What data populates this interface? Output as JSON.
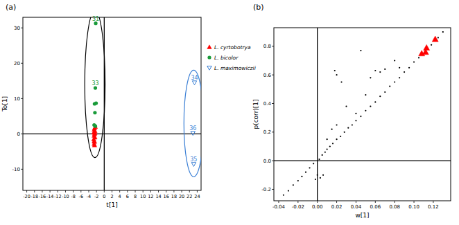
{
  "chart_data": [
    {
      "type": "scatter",
      "title": "(a)",
      "x_label": "t[1]",
      "y_label": "To[1]",
      "xlim": [
        -21,
        25
      ],
      "ylim": [
        -16,
        33
      ],
      "xticks": [
        -20,
        -18,
        -16,
        -14,
        -12,
        -10,
        -8,
        -6,
        -4,
        -2,
        0,
        2,
        4,
        6,
        8,
        10,
        12,
        14,
        16,
        18,
        20,
        22,
        24
      ],
      "yticks": [
        -10,
        0,
        10,
        20,
        30
      ],
      "legend": "right",
      "series": [
        {
          "name": "L. cyrtobotrya",
          "color": "#ff0000",
          "marker": "triangle",
          "x": [
            -2.6,
            -2.5,
            -2.7,
            -2.4,
            -2.6,
            -2.5,
            -2.7,
            -2.4,
            -2.6,
            -2.5,
            -2.3,
            -2.6,
            -2.5,
            -2.4
          ],
          "values": [
            -2.8,
            -2.2,
            -1.5,
            -1.0,
            -0.5,
            0.0,
            0.4,
            0.8,
            1.2,
            1.6,
            2.0,
            -2.0,
            -3.2,
            0.3
          ],
          "labels": [
            null,
            null,
            null,
            null,
            null,
            null,
            null,
            null,
            null,
            null,
            null,
            null,
            null,
            null
          ]
        },
        {
          "name": "L. bicolor",
          "color": "#1a9b3a",
          "marker": "circle",
          "x": [
            -2.2,
            -2.3,
            -2.5,
            -2.1,
            -2.4,
            -2.6,
            -2.3
          ],
          "values": [
            31.3,
            13.0,
            8.5,
            8.7,
            6.0,
            2.5,
            2.2
          ],
          "labels": [
            "31",
            "33",
            null,
            null,
            null,
            null,
            null
          ]
        },
        {
          "name": "L. maximowiczii",
          "color": "#3a7fd5",
          "marker": "triangle-down",
          "x": [
            23.3,
            22.9,
            23.1
          ],
          "values": [
            14.5,
            0.2,
            -8.6
          ],
          "labels": [
            "34",
            "36",
            "35"
          ]
        }
      ]
    },
    {
      "type": "scatter",
      "title": "(b)",
      "x_label": "w[1]",
      "y_label": "p(corr)[1]",
      "xlim": [
        -0.045,
        0.138
      ],
      "ylim": [
        -0.28,
        0.93
      ],
      "xticks": [
        -0.04,
        -0.02,
        {
          "value": 0,
          "label": "0.00"
        },
        0.02,
        0.04,
        0.06,
        0.08,
        {
          "value": 0.1,
          "label": "0.10"
        },
        0.12
      ],
      "yticks": [
        -0.2,
        {
          "value": 0,
          "label": "0.0"
        },
        0.2,
        0.4,
        0.6,
        0.8
      ],
      "series": [
        {
          "color": "#000000",
          "marker": "point",
          "x": [
            -0.035,
            -0.03,
            -0.025,
            -0.02,
            -0.016,
            -0.012,
            -0.008,
            -0.004,
            -0.002,
            0.0,
            0.002,
            0.005,
            0.008,
            0.01,
            0.013,
            0.016,
            0.02,
            0.024,
            0.028,
            0.032,
            0.036,
            0.04,
            0.045,
            0.05,
            0.055,
            0.06,
            0.065,
            0.07,
            0.075,
            0.08,
            0.085,
            0.09,
            0.095,
            0.1,
            0.105,
            0.118,
            0.125,
            0.13,
            0.018,
            0.02,
            0.025,
            0.045,
            0.05,
            0.055,
            0.06,
            0.065,
            0.07,
            0.02,
            0.03,
            0.04,
            0.08,
            0.085,
            0.01,
            0.015,
            0.006,
            0.003
          ],
          "values": [
            -0.24,
            -0.21,
            -0.17,
            -0.14,
            -0.11,
            -0.08,
            -0.05,
            -0.02,
            -0.13,
            -0.1,
            0.01,
            0.04,
            0.06,
            0.08,
            0.1,
            0.12,
            0.15,
            0.17,
            0.2,
            0.23,
            0.25,
            0.28,
            0.31,
            0.35,
            0.38,
            0.41,
            0.45,
            0.48,
            0.52,
            0.55,
            0.58,
            0.62,
            0.65,
            0.69,
            0.72,
            0.81,
            0.86,
            0.9,
            0.63,
            0.6,
            0.55,
            0.77,
            0.46,
            0.58,
            0.63,
            0.62,
            0.64,
            0.25,
            0.38,
            0.33,
            0.7,
            0.65,
            0.15,
            0.22,
            -0.1,
            -0.12
          ]
        },
        {
          "color": "#ff0000",
          "marker": "triangle",
          "x": [
            0.108,
            0.112,
            0.113,
            0.122
          ],
          "values": [
            0.75,
            0.76,
            0.79,
            0.85
          ]
        }
      ]
    }
  ]
}
